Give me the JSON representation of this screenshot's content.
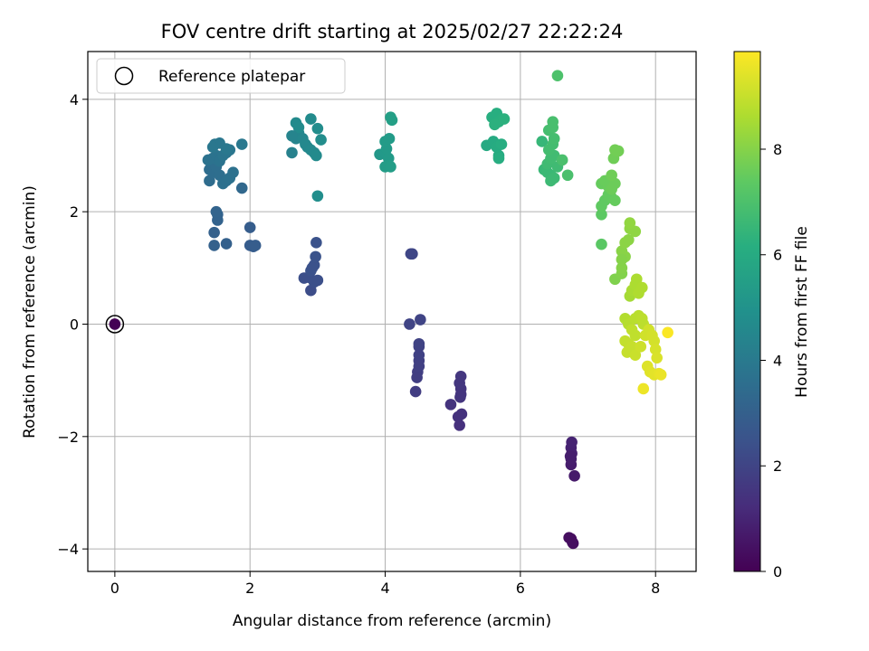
{
  "chart_data": {
    "type": "scatter",
    "title": "FOV centre drift starting at 2025/02/27 22:22:24",
    "xlabel": "Angular distance from reference (arcmin)",
    "ylabel": "Rotation from reference (arcmin)",
    "xlim": [
      -0.4,
      8.6
    ],
    "ylim": [
      -4.4,
      4.85
    ],
    "x_ticks": [
      "0",
      "2",
      "4",
      "6",
      "8"
    ],
    "y_ticks": [
      "4",
      "2",
      "0",
      "−2",
      "−4"
    ],
    "grid": true,
    "legend": {
      "placement": "top-left",
      "entries": [
        "Reference platepar"
      ]
    },
    "reference_point": {
      "x": 0,
      "y": 0
    },
    "colorbar": {
      "label": "Hours from first FF file",
      "range": [
        0,
        9.85
      ],
      "ticks": [
        "0",
        "2",
        "4",
        "6",
        "8"
      ],
      "colormap": "viridis"
    },
    "points": [
      {
        "x": 0.0,
        "y": 0.0,
        "h": 0.0
      },
      {
        "x": 6.75,
        "y": -3.82,
        "h": 0.3
      },
      {
        "x": 6.77,
        "y": -3.88,
        "h": 0.3
      },
      {
        "x": 6.72,
        "y": -3.8,
        "h": 0.35
      },
      {
        "x": 6.78,
        "y": -3.9,
        "h": 0.35
      },
      {
        "x": 6.8,
        "y": -2.7,
        "h": 0.7
      },
      {
        "x": 6.75,
        "y": -2.5,
        "h": 0.75
      },
      {
        "x": 6.75,
        "y": -2.4,
        "h": 0.8
      },
      {
        "x": 6.76,
        "y": -2.3,
        "h": 0.85
      },
      {
        "x": 6.75,
        "y": -2.2,
        "h": 0.9
      },
      {
        "x": 6.76,
        "y": -2.1,
        "h": 0.95
      },
      {
        "x": 6.74,
        "y": -2.35,
        "h": 0.8
      },
      {
        "x": 5.1,
        "y": -1.8,
        "h": 1.35
      },
      {
        "x": 5.13,
        "y": -1.6,
        "h": 1.4
      },
      {
        "x": 5.08,
        "y": -1.65,
        "h": 1.4
      },
      {
        "x": 4.97,
        "y": -1.43,
        "h": 1.45
      },
      {
        "x": 5.12,
        "y": -1.25,
        "h": 1.5
      },
      {
        "x": 5.12,
        "y": -1.15,
        "h": 1.5
      },
      {
        "x": 5.1,
        "y": -1.05,
        "h": 1.55
      },
      {
        "x": 5.12,
        "y": -0.93,
        "h": 1.55
      },
      {
        "x": 5.11,
        "y": -1.3,
        "h": 1.5
      },
      {
        "x": 4.45,
        "y": -1.2,
        "h": 1.75
      },
      {
        "x": 4.47,
        "y": -0.95,
        "h": 1.8
      },
      {
        "x": 4.48,
        "y": -0.85,
        "h": 1.8
      },
      {
        "x": 4.5,
        "y": -0.75,
        "h": 1.85
      },
      {
        "x": 4.5,
        "y": -0.65,
        "h": 1.85
      },
      {
        "x": 4.5,
        "y": -0.55,
        "h": 1.9
      },
      {
        "x": 4.5,
        "y": -0.4,
        "h": 1.9
      },
      {
        "x": 4.5,
        "y": -0.35,
        "h": 1.95
      },
      {
        "x": 4.36,
        "y": 0.0,
        "h": 2.0
      },
      {
        "x": 4.52,
        "y": 0.08,
        "h": 2.0
      },
      {
        "x": 4.38,
        "y": 1.25,
        "h": 2.05
      },
      {
        "x": 4.4,
        "y": 1.25,
        "h": 2.05
      },
      {
        "x": 2.9,
        "y": 0.6,
        "h": 2.3
      },
      {
        "x": 2.8,
        "y": 0.82,
        "h": 2.35
      },
      {
        "x": 2.88,
        "y": 0.83,
        "h": 2.35
      },
      {
        "x": 2.95,
        "y": 0.75,
        "h": 2.4
      },
      {
        "x": 3.0,
        "y": 0.78,
        "h": 2.4
      },
      {
        "x": 2.9,
        "y": 0.95,
        "h": 2.45
      },
      {
        "x": 2.95,
        "y": 1.05,
        "h": 2.45
      },
      {
        "x": 2.97,
        "y": 1.2,
        "h": 2.5
      },
      {
        "x": 2.98,
        "y": 1.45,
        "h": 2.5
      },
      {
        "x": 2.92,
        "y": 1.0,
        "h": 2.45
      },
      {
        "x": 2.0,
        "y": 1.4,
        "h": 2.85
      },
      {
        "x": 2.05,
        "y": 1.38,
        "h": 2.85
      },
      {
        "x": 2.08,
        "y": 1.4,
        "h": 2.9
      },
      {
        "x": 2.0,
        "y": 1.72,
        "h": 2.9
      },
      {
        "x": 1.65,
        "y": 1.43,
        "h": 3.0
      },
      {
        "x": 1.47,
        "y": 1.4,
        "h": 3.05
      },
      {
        "x": 1.47,
        "y": 1.63,
        "h": 3.05
      },
      {
        "x": 1.52,
        "y": 1.85,
        "h": 3.1
      },
      {
        "x": 1.52,
        "y": 1.95,
        "h": 3.1
      },
      {
        "x": 1.5,
        "y": 2.0,
        "h": 3.15
      },
      {
        "x": 1.88,
        "y": 2.42,
        "h": 3.3
      },
      {
        "x": 1.4,
        "y": 2.55,
        "h": 3.45
      },
      {
        "x": 1.4,
        "y": 2.75,
        "h": 3.5
      },
      {
        "x": 1.45,
        "y": 2.7,
        "h": 3.5
      },
      {
        "x": 1.5,
        "y": 2.8,
        "h": 3.55
      },
      {
        "x": 1.55,
        "y": 2.65,
        "h": 3.55
      },
      {
        "x": 1.6,
        "y": 2.5,
        "h": 3.6
      },
      {
        "x": 1.65,
        "y": 2.55,
        "h": 3.6
      },
      {
        "x": 1.7,
        "y": 2.6,
        "h": 3.65
      },
      {
        "x": 1.75,
        "y": 2.7,
        "h": 3.65
      },
      {
        "x": 1.38,
        "y": 2.92,
        "h": 3.7
      },
      {
        "x": 1.45,
        "y": 2.95,
        "h": 3.7
      },
      {
        "x": 1.5,
        "y": 3.0,
        "h": 3.75
      },
      {
        "x": 1.55,
        "y": 2.9,
        "h": 3.75
      },
      {
        "x": 1.6,
        "y": 3.0,
        "h": 3.8
      },
      {
        "x": 1.65,
        "y": 3.05,
        "h": 3.8
      },
      {
        "x": 1.7,
        "y": 3.1,
        "h": 3.85
      },
      {
        "x": 1.48,
        "y": 3.2,
        "h": 3.85
      },
      {
        "x": 1.55,
        "y": 3.22,
        "h": 3.9
      },
      {
        "x": 1.45,
        "y": 3.15,
        "h": 3.9
      },
      {
        "x": 1.65,
        "y": 3.12,
        "h": 3.95
      },
      {
        "x": 1.88,
        "y": 3.2,
        "h": 3.95
      },
      {
        "x": 2.62,
        "y": 3.05,
        "h": 4.3
      },
      {
        "x": 2.68,
        "y": 3.3,
        "h": 4.4
      },
      {
        "x": 2.72,
        "y": 3.4,
        "h": 4.45
      },
      {
        "x": 2.78,
        "y": 3.3,
        "h": 4.5
      },
      {
        "x": 2.82,
        "y": 3.2,
        "h": 4.55
      },
      {
        "x": 2.85,
        "y": 3.15,
        "h": 4.55
      },
      {
        "x": 2.9,
        "y": 3.1,
        "h": 4.6
      },
      {
        "x": 2.95,
        "y": 3.05,
        "h": 4.6
      },
      {
        "x": 2.98,
        "y": 3.0,
        "h": 4.65
      },
      {
        "x": 2.68,
        "y": 3.58,
        "h": 4.65
      },
      {
        "x": 2.72,
        "y": 3.5,
        "h": 4.7
      },
      {
        "x": 2.9,
        "y": 3.65,
        "h": 4.7
      },
      {
        "x": 3.0,
        "y": 3.48,
        "h": 4.75
      },
      {
        "x": 3.05,
        "y": 3.28,
        "h": 4.75
      },
      {
        "x": 2.62,
        "y": 3.35,
        "h": 4.4
      },
      {
        "x": 3.0,
        "y": 2.28,
        "h": 4.8
      },
      {
        "x": 3.92,
        "y": 3.02,
        "h": 5.2
      },
      {
        "x": 4.0,
        "y": 3.05,
        "h": 5.25
      },
      {
        "x": 4.05,
        "y": 2.95,
        "h": 5.3
      },
      {
        "x": 4.02,
        "y": 3.12,
        "h": 5.3
      },
      {
        "x": 4.0,
        "y": 3.25,
        "h": 5.35
      },
      {
        "x": 4.06,
        "y": 3.3,
        "h": 5.35
      },
      {
        "x": 4.0,
        "y": 2.8,
        "h": 5.4
      },
      {
        "x": 4.05,
        "y": 2.82,
        "h": 5.4
      },
      {
        "x": 4.08,
        "y": 2.8,
        "h": 5.45
      },
      {
        "x": 4.08,
        "y": 3.68,
        "h": 5.5
      },
      {
        "x": 4.1,
        "y": 3.63,
        "h": 5.5
      },
      {
        "x": 5.5,
        "y": 3.18,
        "h": 5.95
      },
      {
        "x": 5.6,
        "y": 3.25,
        "h": 6.0
      },
      {
        "x": 5.65,
        "y": 3.15,
        "h": 6.05
      },
      {
        "x": 5.68,
        "y": 3.0,
        "h": 6.05
      },
      {
        "x": 5.68,
        "y": 2.95,
        "h": 6.1
      },
      {
        "x": 5.72,
        "y": 3.2,
        "h": 6.1
      },
      {
        "x": 5.58,
        "y": 3.68,
        "h": 6.15
      },
      {
        "x": 5.65,
        "y": 3.75,
        "h": 6.15
      },
      {
        "x": 5.68,
        "y": 3.6,
        "h": 6.2
      },
      {
        "x": 5.72,
        "y": 3.65,
        "h": 6.2
      },
      {
        "x": 5.76,
        "y": 3.65,
        "h": 6.25
      },
      {
        "x": 5.62,
        "y": 3.55,
        "h": 6.25
      },
      {
        "x": 6.32,
        "y": 3.25,
        "h": 6.5
      },
      {
        "x": 6.35,
        "y": 2.75,
        "h": 6.55
      },
      {
        "x": 6.4,
        "y": 2.7,
        "h": 6.6
      },
      {
        "x": 6.45,
        "y": 2.65,
        "h": 6.6
      },
      {
        "x": 6.5,
        "y": 2.6,
        "h": 6.65
      },
      {
        "x": 6.45,
        "y": 2.55,
        "h": 6.65
      },
      {
        "x": 6.55,
        "y": 2.8,
        "h": 6.7
      },
      {
        "x": 6.4,
        "y": 2.85,
        "h": 6.7
      },
      {
        "x": 6.45,
        "y": 2.95,
        "h": 6.75
      },
      {
        "x": 6.5,
        "y": 3.0,
        "h": 6.75
      },
      {
        "x": 6.42,
        "y": 3.1,
        "h": 6.8
      },
      {
        "x": 6.48,
        "y": 3.2,
        "h": 6.8
      },
      {
        "x": 6.5,
        "y": 3.3,
        "h": 6.85
      },
      {
        "x": 6.42,
        "y": 3.45,
        "h": 6.85
      },
      {
        "x": 6.48,
        "y": 3.5,
        "h": 6.9
      },
      {
        "x": 6.48,
        "y": 3.6,
        "h": 6.9
      },
      {
        "x": 6.62,
        "y": 2.92,
        "h": 6.95
      },
      {
        "x": 6.7,
        "y": 2.65,
        "h": 6.95
      },
      {
        "x": 6.55,
        "y": 4.42,
        "h": 7.0
      },
      {
        "x": 7.2,
        "y": 1.42,
        "h": 7.3
      },
      {
        "x": 7.2,
        "y": 1.95,
        "h": 7.35
      },
      {
        "x": 7.2,
        "y": 2.1,
        "h": 7.4
      },
      {
        "x": 7.25,
        "y": 2.2,
        "h": 7.4
      },
      {
        "x": 7.3,
        "y": 2.3,
        "h": 7.45
      },
      {
        "x": 7.35,
        "y": 2.25,
        "h": 7.45
      },
      {
        "x": 7.4,
        "y": 2.2,
        "h": 7.5
      },
      {
        "x": 7.2,
        "y": 2.5,
        "h": 7.5
      },
      {
        "x": 7.25,
        "y": 2.55,
        "h": 7.55
      },
      {
        "x": 7.3,
        "y": 2.45,
        "h": 7.55
      },
      {
        "x": 7.35,
        "y": 2.4,
        "h": 7.6
      },
      {
        "x": 7.4,
        "y": 2.5,
        "h": 7.6
      },
      {
        "x": 7.35,
        "y": 2.65,
        "h": 7.65
      },
      {
        "x": 7.38,
        "y": 2.95,
        "h": 7.65
      },
      {
        "x": 7.45,
        "y": 3.08,
        "h": 7.7
      },
      {
        "x": 7.4,
        "y": 3.1,
        "h": 7.7
      },
      {
        "x": 7.4,
        "y": 0.8,
        "h": 7.9
      },
      {
        "x": 7.5,
        "y": 0.9,
        "h": 7.95
      },
      {
        "x": 7.5,
        "y": 1.0,
        "h": 8.0
      },
      {
        "x": 7.55,
        "y": 1.2,
        "h": 8.05
      },
      {
        "x": 7.5,
        "y": 1.3,
        "h": 8.05
      },
      {
        "x": 7.55,
        "y": 1.45,
        "h": 8.1
      },
      {
        "x": 7.6,
        "y": 1.5,
        "h": 8.1
      },
      {
        "x": 7.62,
        "y": 1.7,
        "h": 8.15
      },
      {
        "x": 7.7,
        "y": 1.65,
        "h": 8.15
      },
      {
        "x": 7.62,
        "y": 1.8,
        "h": 8.2
      },
      {
        "x": 7.5,
        "y": 1.15,
        "h": 8.0
      },
      {
        "x": 7.62,
        "y": 0.5,
        "h": 8.5
      },
      {
        "x": 7.65,
        "y": 0.6,
        "h": 8.55
      },
      {
        "x": 7.7,
        "y": 0.7,
        "h": 8.6
      },
      {
        "x": 7.72,
        "y": 0.8,
        "h": 8.6
      },
      {
        "x": 7.8,
        "y": 0.65,
        "h": 8.65
      },
      {
        "x": 7.75,
        "y": 0.55,
        "h": 8.65
      },
      {
        "x": 7.55,
        "y": 0.1,
        "h": 8.7
      },
      {
        "x": 7.6,
        "y": 0.0,
        "h": 8.75
      },
      {
        "x": 7.7,
        "y": 0.1,
        "h": 8.8
      },
      {
        "x": 7.75,
        "y": 0.15,
        "h": 8.8
      },
      {
        "x": 7.8,
        "y": 0.1,
        "h": 8.85
      },
      {
        "x": 7.82,
        "y": 0.0,
        "h": 8.85
      },
      {
        "x": 7.65,
        "y": -0.1,
        "h": 8.9
      },
      {
        "x": 7.7,
        "y": -0.2,
        "h": 8.9
      },
      {
        "x": 7.55,
        "y": -0.3,
        "h": 8.95
      },
      {
        "x": 7.6,
        "y": -0.35,
        "h": 8.95
      },
      {
        "x": 7.65,
        "y": -0.4,
        "h": 9.0
      },
      {
        "x": 7.58,
        "y": -0.5,
        "h": 9.0
      },
      {
        "x": 7.7,
        "y": -0.55,
        "h": 9.05
      },
      {
        "x": 7.78,
        "y": -0.4,
        "h": 9.1
      },
      {
        "x": 7.85,
        "y": -0.2,
        "h": 9.15
      },
      {
        "x": 7.9,
        "y": -0.1,
        "h": 9.15
      },
      {
        "x": 7.95,
        "y": -0.2,
        "h": 9.2
      },
      {
        "x": 7.98,
        "y": -0.3,
        "h": 9.2
      },
      {
        "x": 8.0,
        "y": -0.45,
        "h": 9.25
      },
      {
        "x": 8.02,
        "y": -0.6,
        "h": 9.3
      },
      {
        "x": 7.88,
        "y": -0.75,
        "h": 9.35
      },
      {
        "x": 7.92,
        "y": -0.85,
        "h": 9.4
      },
      {
        "x": 7.98,
        "y": -0.9,
        "h": 9.45
      },
      {
        "x": 8.05,
        "y": -0.88,
        "h": 9.5
      },
      {
        "x": 8.08,
        "y": -0.9,
        "h": 9.55
      },
      {
        "x": 7.82,
        "y": -1.15,
        "h": 9.6
      },
      {
        "x": 8.18,
        "y": -0.15,
        "h": 9.8
      }
    ]
  }
}
